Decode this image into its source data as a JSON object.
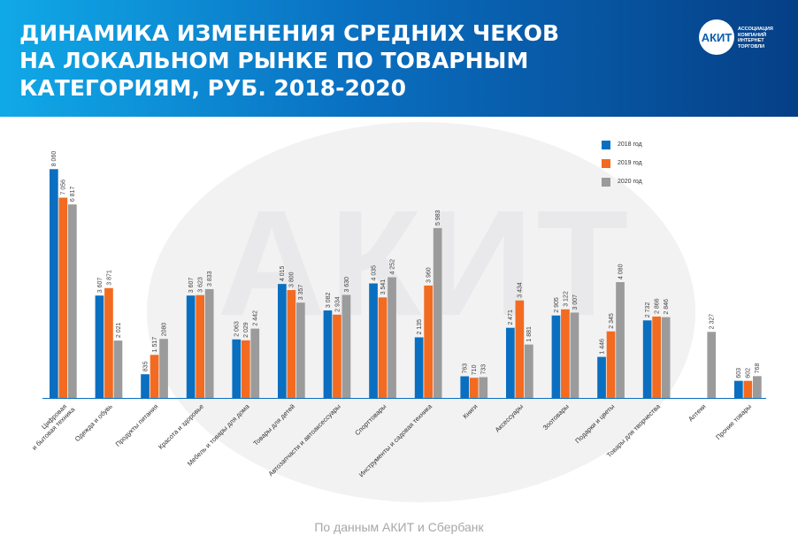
{
  "header": {
    "title": "ДИНАМИКА ИЗМЕНЕНИЯ СРЕДНИХ ЧЕКОВ НА ЛОКАЛЬНОМ РЫНКЕ ПО ТОВАРНЫМ КАТЕГОРИЯМ, РУБ. 2018-2020",
    "logo_text": "АКИТ",
    "logo_subtitle": "АССОЦИАЦИЯ КОМПАНИЙ ИНТЕРНЕТ ТОРГОВЛИ"
  },
  "watermark_text": "АКИТ",
  "source": "По данным АКИТ и Сбербанк",
  "colors": {
    "2018": "#0a6fc0",
    "2019": "#f26b21",
    "2020": "#9b9b9b",
    "header_start": "#10a9e8",
    "header_end": "#053f86"
  },
  "chart_data": {
    "type": "bar",
    "title": "ДИНАМИКА ИЗМЕНЕНИЯ СРЕДНИХ ЧЕКОВ НА ЛОКАЛЬНОМ РЫНКЕ ПО ТОВАРНЫМ КАТЕГОРИЯМ, РУБ. 2018-2020",
    "legend_position": "top-right",
    "grid": false,
    "ylim": [
      0,
      8100
    ],
    "categories": [
      "Цифровая и бытовая техника",
      "Одежда и обувь",
      "Продукты питания",
      "Красота и здоровье",
      "Мебель и товары для дома",
      "Товары для детей",
      "Автозапчасти и автоаксессуары",
      "Спорттовары",
      "Инструменты и садовая техника",
      "Книги",
      "Аксессуары",
      "Зоотовары",
      "Подарки и цветы",
      "Товары для творчества",
      "Аптеки",
      "Прочие товары"
    ],
    "series": [
      {
        "name": "2018 год",
        "values": [
          8060,
          3607,
          835,
          3607,
          2063,
          4015,
          3082,
          4035,
          2135,
          763,
          2471,
          2905,
          1446,
          2732,
          null,
          603
        ],
        "labels": [
          "8 060",
          "3 607",
          "835",
          "3 607",
          "2 063",
          "4 015",
          "3 082",
          "4 035",
          "2 135",
          "763",
          "2 471",
          "2 905",
          "1 446",
          "2 732",
          "",
          "603"
        ]
      },
      {
        "name": "2019 год",
        "values": [
          7056,
          3871,
          1517,
          3623,
          2029,
          3800,
          2934,
          3541,
          3960,
          710,
          3434,
          3122,
          2345,
          2866,
          null,
          602
        ],
        "labels": [
          "7 056",
          "3 871",
          "1 517",
          "3 623",
          "2 029",
          "3 800",
          "2 934",
          "3 541",
          "3 960",
          "710",
          "3 434",
          "3 122",
          "2 345",
          "2 866",
          "",
          "602"
        ]
      },
      {
        "name": "2020 год",
        "values": [
          6817,
          2021,
          2080,
          3833,
          2442,
          3357,
          3630,
          4252,
          5983,
          733,
          1881,
          3007,
          4080,
          2846,
          2327,
          768
        ],
        "labels": [
          "6 817",
          "2 021",
          "2080",
          "3 833",
          "2 442",
          "3 357",
          "3 630",
          "4 252",
          "5 983",
          "733",
          "1 881",
          "3 007",
          "4 080",
          "2 846",
          "2 327",
          "768"
        ]
      }
    ]
  }
}
